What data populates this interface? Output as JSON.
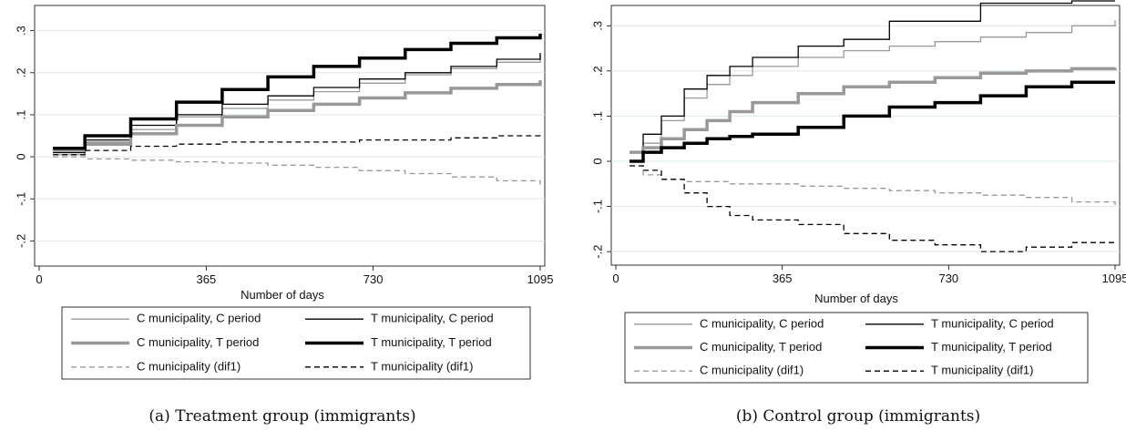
{
  "legend_entries": [
    {
      "name": "C municipality, C period",
      "color": "#999999",
      "width": 1.3,
      "dash": ""
    },
    {
      "name": "T municipality, C period",
      "color": "#000000",
      "width": 1.3,
      "dash": ""
    },
    {
      "name": "C municipality, T period",
      "color": "#999999",
      "width": 3.5,
      "dash": ""
    },
    {
      "name": "T municipality, T period",
      "color": "#000000",
      "width": 3.5,
      "dash": ""
    },
    {
      "name": "C municipality (dif1)",
      "color": "#999999",
      "width": 1.3,
      "dash": "6,4"
    },
    {
      "name": "T municipality (dif1)",
      "color": "#000000",
      "width": 1.3,
      "dash": "6,4"
    }
  ],
  "chart_data": [
    {
      "type": "line",
      "caption": "(a) Treatment group (immigrants)",
      "xlabel": "Number of days",
      "ylabel": "",
      "xlim": [
        -10,
        1105
      ],
      "ylim": [
        -0.26,
        0.36
      ],
      "xticks": [
        0,
        365,
        730,
        1095
      ],
      "yticks": [
        -0.2,
        -0.1,
        0,
        0.1,
        0.2,
        0.3
      ],
      "ytick_labels": [
        "-.2",
        "-.1",
        "0",
        ".1",
        ".2",
        ".3"
      ],
      "grid": true,
      "series": [
        {
          "name": "C municipality, C period",
          "x": [
            30,
            100,
            200,
            300,
            400,
            500,
            600,
            700,
            800,
            900,
            1000,
            1095
          ],
          "y": [
            0.005,
            0.035,
            0.065,
            0.095,
            0.115,
            0.135,
            0.155,
            0.175,
            0.195,
            0.21,
            0.225,
            0.245
          ]
        },
        {
          "name": "T municipality, C period",
          "x": [
            30,
            100,
            200,
            300,
            400,
            500,
            600,
            700,
            800,
            900,
            1000,
            1095
          ],
          "y": [
            0.01,
            0.04,
            0.075,
            0.1,
            0.125,
            0.145,
            0.165,
            0.185,
            0.2,
            0.215,
            0.232,
            0.247
          ]
        },
        {
          "name": "C municipality, T period",
          "x": [
            30,
            100,
            200,
            300,
            400,
            500,
            600,
            700,
            800,
            900,
            1000,
            1095
          ],
          "y": [
            0.015,
            0.03,
            0.055,
            0.075,
            0.095,
            0.11,
            0.125,
            0.14,
            0.152,
            0.163,
            0.172,
            0.182
          ]
        },
        {
          "name": "T municipality, T period",
          "x": [
            30,
            100,
            200,
            300,
            400,
            500,
            600,
            700,
            800,
            900,
            1000,
            1095
          ],
          "y": [
            0.02,
            0.05,
            0.09,
            0.13,
            0.16,
            0.19,
            0.215,
            0.235,
            0.255,
            0.27,
            0.283,
            0.293
          ]
        },
        {
          "name": "C municipality (dif1)",
          "x": [
            30,
            100,
            200,
            300,
            400,
            500,
            600,
            700,
            800,
            900,
            1000,
            1095
          ],
          "y": [
            0.0,
            -0.005,
            -0.008,
            -0.012,
            -0.015,
            -0.02,
            -0.025,
            -0.033,
            -0.04,
            -0.048,
            -0.057,
            -0.066
          ]
        },
        {
          "name": "T municipality (dif1)",
          "x": [
            30,
            100,
            200,
            300,
            400,
            500,
            600,
            700,
            800,
            900,
            1000,
            1095
          ],
          "y": [
            0.005,
            0.015,
            0.025,
            0.03,
            0.035,
            0.035,
            0.035,
            0.04,
            0.04,
            0.045,
            0.05,
            0.048
          ]
        }
      ]
    },
    {
      "type": "line",
      "caption": "(b) Control group (immigrants)",
      "xlabel": "Number of days",
      "ylabel": "",
      "xlim": [
        -10,
        1105
      ],
      "ylim": [
        -0.23,
        0.345
      ],
      "xticks": [
        0,
        365,
        730,
        1095
      ],
      "yticks": [
        -0.2,
        -0.1,
        0,
        0.1,
        0.2,
        0.3
      ],
      "ytick_labels": [
        "-.2",
        "-.1",
        "0",
        ".1",
        ".2",
        ".3"
      ],
      "grid": true,
      "series": [
        {
          "name": "C municipality, C period",
          "x": [
            30,
            60,
            100,
            150,
            200,
            250,
            300,
            400,
            500,
            600,
            700,
            800,
            900,
            1000,
            1095
          ],
          "y": [
            0.02,
            0.04,
            0.09,
            0.14,
            0.17,
            0.19,
            0.21,
            0.23,
            0.245,
            0.255,
            0.265,
            0.275,
            0.285,
            0.3,
            0.312
          ]
        },
        {
          "name": "T municipality, C period",
          "x": [
            30,
            60,
            100,
            150,
            200,
            250,
            300,
            400,
            500,
            600,
            700,
            800,
            900,
            1000,
            1095
          ],
          "y": [
            0.02,
            0.06,
            0.1,
            0.16,
            0.19,
            0.21,
            0.23,
            0.255,
            0.27,
            0.31,
            0.31,
            0.35,
            0.35,
            0.355,
            0.355
          ]
        },
        {
          "name": "C municipality, T period",
          "x": [
            30,
            60,
            100,
            150,
            200,
            250,
            300,
            400,
            500,
            600,
            700,
            800,
            900,
            1000,
            1095
          ],
          "y": [
            0.02,
            0.03,
            0.05,
            0.07,
            0.09,
            0.11,
            0.13,
            0.15,
            0.165,
            0.175,
            0.185,
            0.195,
            0.2,
            0.205,
            0.207
          ]
        },
        {
          "name": "T municipality, T period",
          "x": [
            30,
            60,
            100,
            150,
            200,
            250,
            300,
            400,
            500,
            600,
            700,
            800,
            900,
            1000,
            1095
          ],
          "y": [
            0.0,
            0.02,
            0.03,
            0.04,
            0.05,
            0.055,
            0.06,
            0.075,
            0.1,
            0.12,
            0.13,
            0.145,
            0.165,
            0.175,
            0.175
          ]
        },
        {
          "name": "C municipality (dif1)",
          "x": [
            30,
            60,
            100,
            150,
            200,
            250,
            300,
            400,
            500,
            600,
            700,
            800,
            900,
            1000,
            1095
          ],
          "y": [
            -0.01,
            -0.03,
            -0.04,
            -0.045,
            -0.045,
            -0.05,
            -0.05,
            -0.055,
            -0.06,
            -0.065,
            -0.07,
            -0.075,
            -0.08,
            -0.09,
            -0.105
          ]
        },
        {
          "name": "T municipality (dif1)",
          "x": [
            30,
            60,
            100,
            150,
            200,
            250,
            300,
            400,
            500,
            600,
            700,
            800,
            900,
            1000,
            1095
          ],
          "y": [
            -0.01,
            -0.02,
            -0.04,
            -0.07,
            -0.1,
            -0.12,
            -0.13,
            -0.14,
            -0.16,
            -0.175,
            -0.185,
            -0.2,
            -0.19,
            -0.18,
            -0.18
          ]
        }
      ]
    }
  ]
}
